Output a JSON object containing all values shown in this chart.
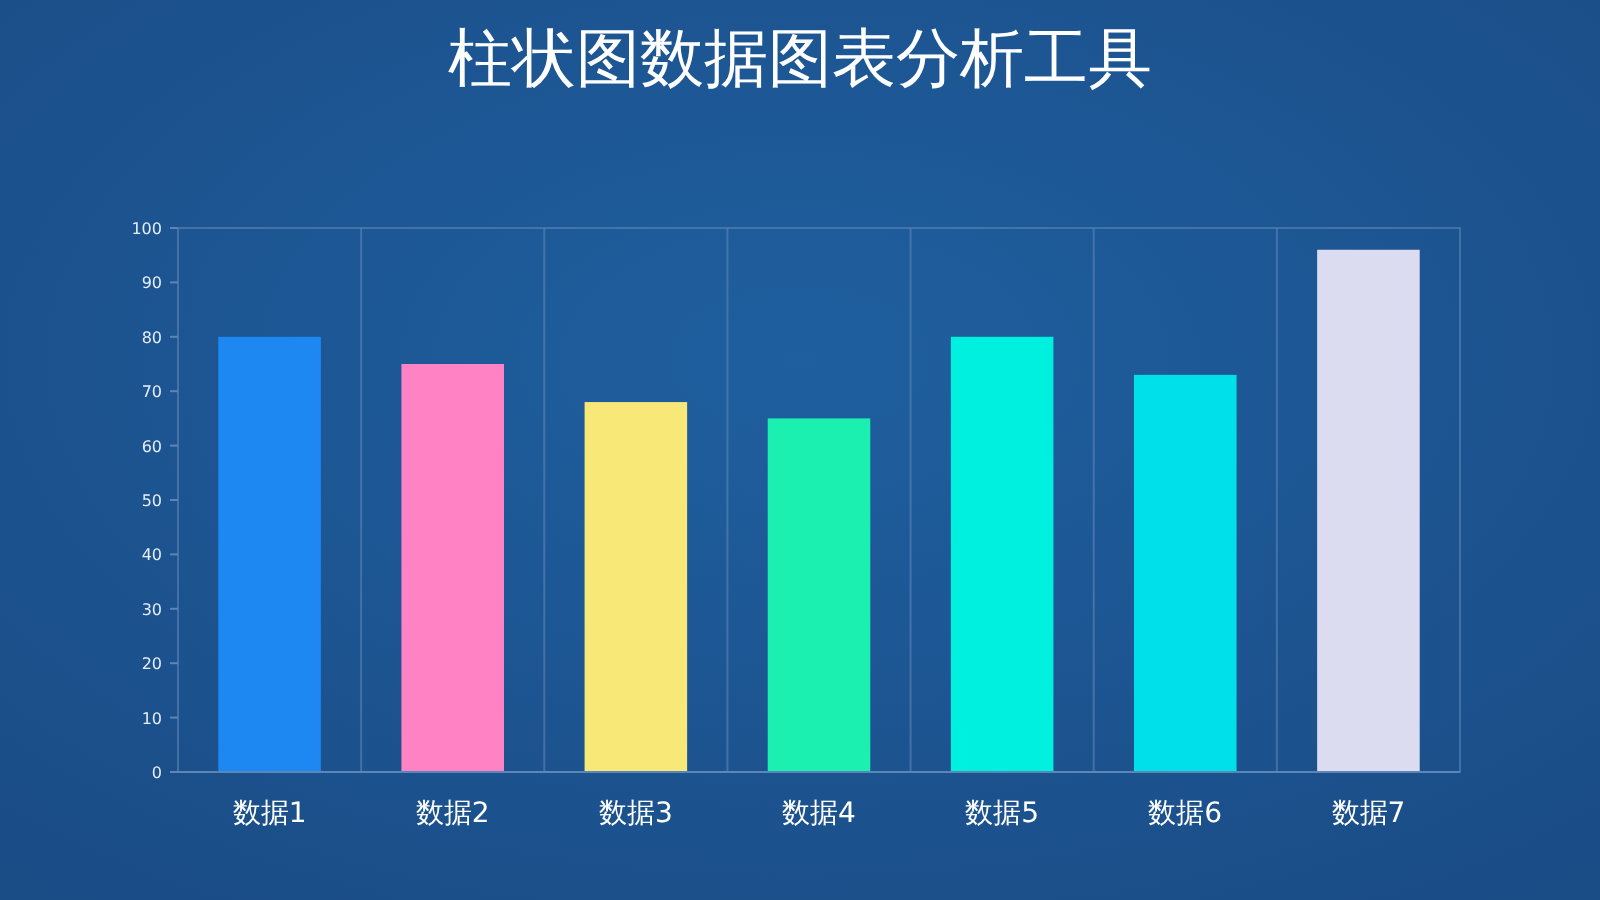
{
  "chart_data": {
    "type": "bar",
    "title": "柱状图数据图表分析工具",
    "categories": [
      "数据1",
      "数据2",
      "数据3",
      "数据4",
      "数据5",
      "数据6",
      "数据7"
    ],
    "values": [
      80,
      75,
      68,
      65,
      80,
      73,
      96
    ],
    "colors": [
      "#1e88f2",
      "#ff82c4",
      "#f8e878",
      "#1cf0b0",
      "#00f0e0",
      "#00e0ea",
      "#dcdcf0"
    ],
    "ylim": [
      0,
      100
    ],
    "yticks": [
      0,
      10,
      20,
      30,
      40,
      50,
      60,
      70,
      80,
      90,
      100
    ],
    "grid": "x"
  }
}
